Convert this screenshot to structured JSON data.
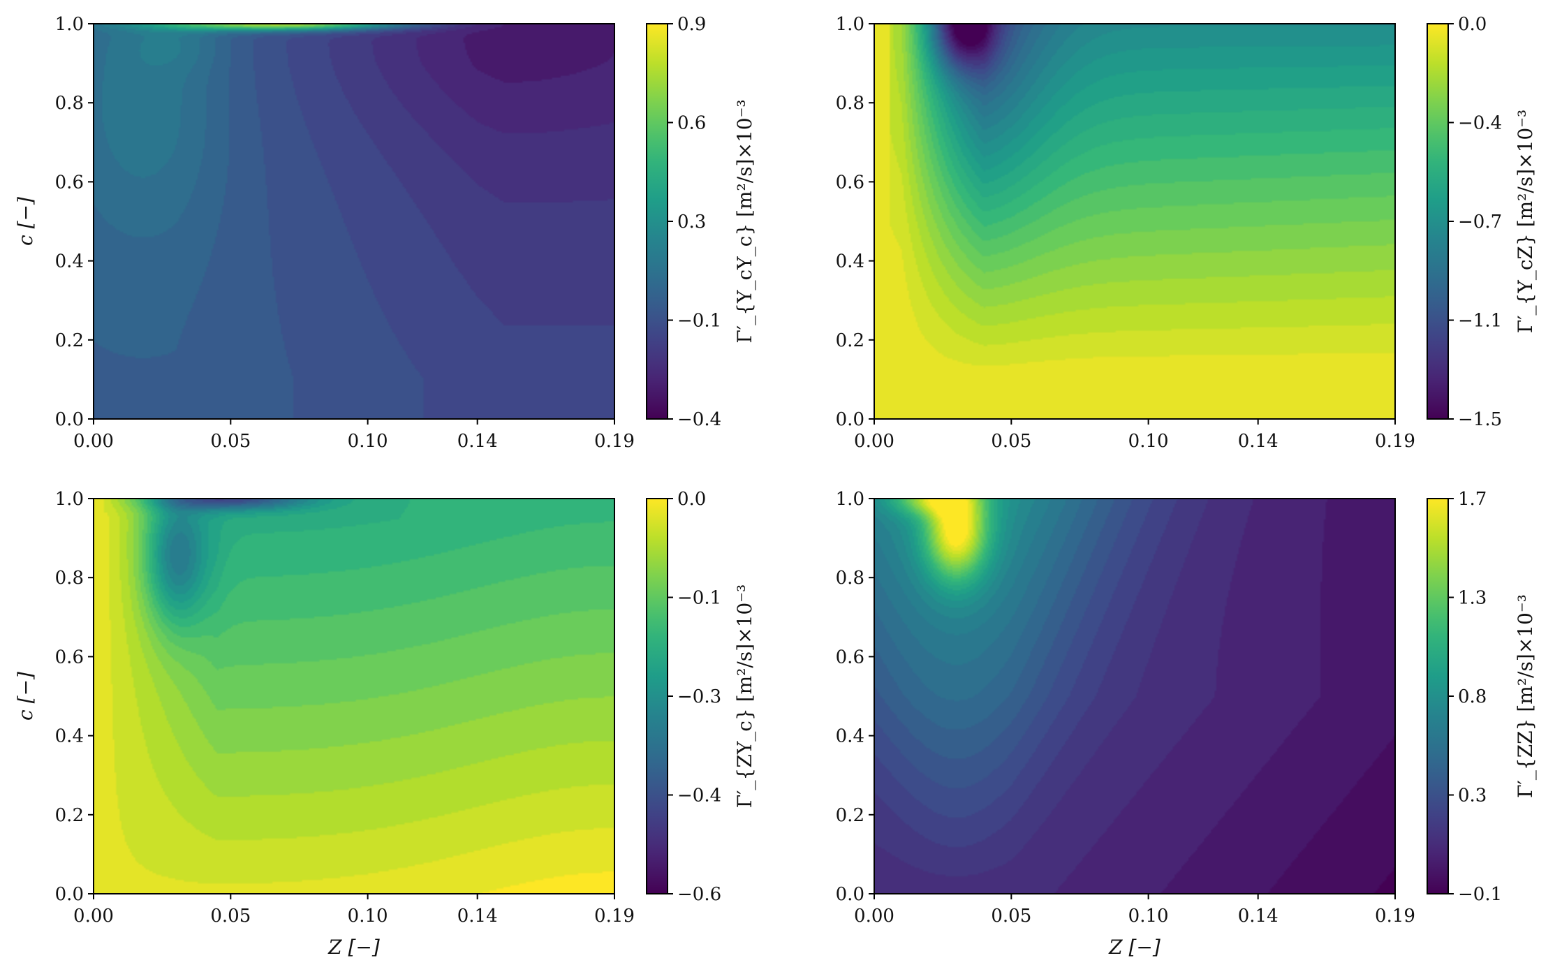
{
  "palette": [
    "#440154",
    "#482878",
    "#3e4989",
    "#31688e",
    "#26828e",
    "#1f9e89",
    "#35b779",
    "#6ece58",
    "#b5de2b",
    "#fde725"
  ],
  "chart_data": [
    {
      "type": "heatmap",
      "xlabel": "",
      "ylabel": "c [−]",
      "xlim": [
        0,
        0.19
      ],
      "ylim": [
        0,
        1
      ],
      "xticks": [
        "0.00",
        "0.05",
        "0.10",
        "0.14",
        "0.19"
      ],
      "yticks": [
        "0.0",
        "0.2",
        "0.4",
        "0.6",
        "0.8",
        "1.0"
      ],
      "colorbar_label": "Γ′_{Y_cY_c} [m²/s]×10⁻³",
      "colorbar_ticks": [
        "0.9",
        "0.6",
        "0.3",
        "−0.1",
        "−0.4"
      ],
      "colorbar_range": [
        -0.4,
        0.9
      ],
      "field": "gYcYc"
    },
    {
      "type": "heatmap",
      "xlabel": "",
      "ylabel": "",
      "xlim": [
        0,
        0.19
      ],
      "ylim": [
        0,
        1
      ],
      "xticks": [
        "0.00",
        "0.05",
        "0.10",
        "0.14",
        "0.19"
      ],
      "yticks": [
        "0.0",
        "0.2",
        "0.4",
        "0.6",
        "0.8",
        "1.0"
      ],
      "colorbar_label": "Γ′_{Y_cZ} [m²/s]×10⁻³",
      "colorbar_ticks": [
        "0.0",
        "−0.4",
        "−0.7",
        "−1.1",
        "−1.5"
      ],
      "colorbar_range": [
        -1.5,
        0.0
      ],
      "field": "gYcZ"
    },
    {
      "type": "heatmap",
      "xlabel": "Z [−]",
      "ylabel": "c [−]",
      "xlim": [
        0,
        0.19
      ],
      "ylim": [
        0,
        1
      ],
      "xticks": [
        "0.00",
        "0.05",
        "0.10",
        "0.14",
        "0.19"
      ],
      "yticks": [
        "0.0",
        "0.2",
        "0.4",
        "0.6",
        "0.8",
        "1.0"
      ],
      "colorbar_label": "Γ′_{ZY_c} [m²/s]×10⁻³",
      "colorbar_ticks": [
        "0.0",
        "−0.1",
        "−0.3",
        "−0.4",
        "−0.6"
      ],
      "colorbar_range": [
        -0.6,
        0.0
      ],
      "field": "gZYc"
    },
    {
      "type": "heatmap",
      "xlabel": "Z [−]",
      "ylabel": "",
      "xlim": [
        0,
        0.19
      ],
      "ylim": [
        0,
        1
      ],
      "xticks": [
        "0.00",
        "0.05",
        "0.10",
        "0.14",
        "0.19"
      ],
      "yticks": [
        "0.0",
        "0.2",
        "0.4",
        "0.6",
        "0.8",
        "1.0"
      ],
      "colorbar_label": "Γ′_{ZZ} [m²/s]×10⁻³",
      "colorbar_ticks": [
        "1.7",
        "1.3",
        "0.8",
        "0.3",
        "−0.1"
      ],
      "colorbar_range": [
        -0.1,
        1.7
      ],
      "field": "gZZ"
    }
  ]
}
